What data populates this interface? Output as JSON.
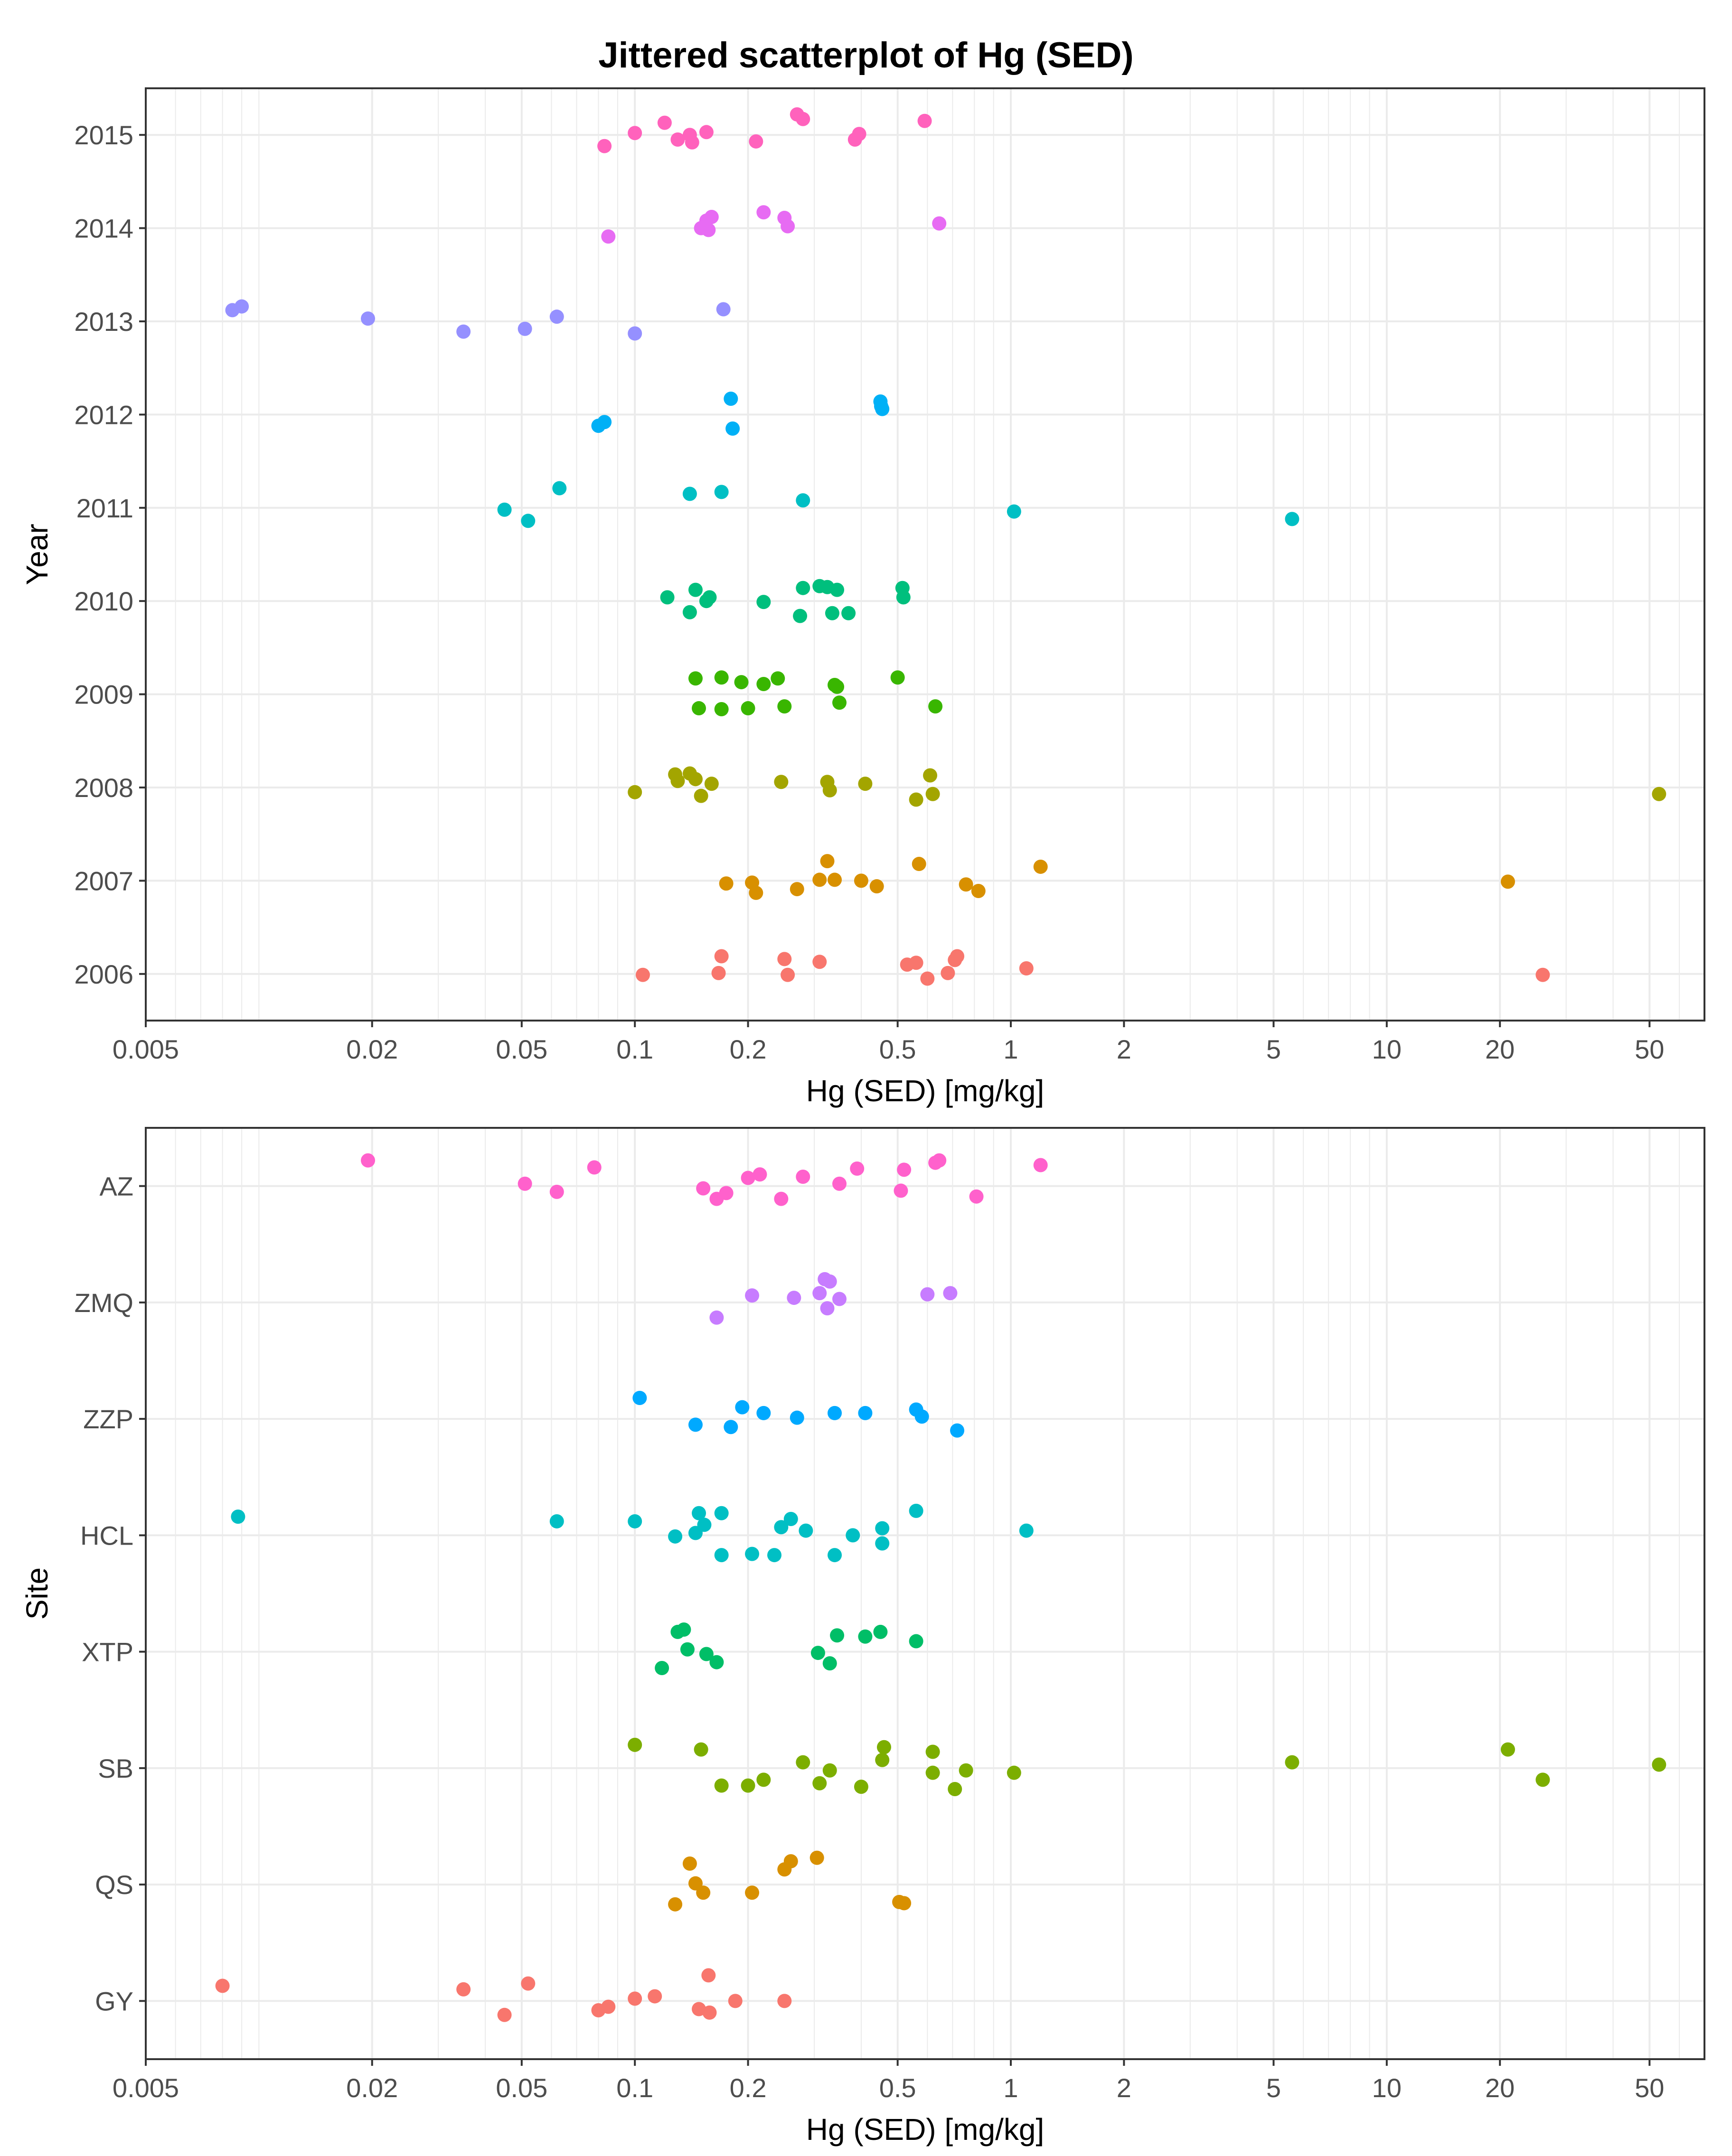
{
  "title": "Jittered scatterplot of Hg (SED)",
  "chart_data": [
    {
      "type": "scatter",
      "title": "Jittered scatterplot of Hg (SED)",
      "xlabel": "Hg (SED) [mg/kg]",
      "ylabel": "Year",
      "x_scale": "log10",
      "xlim": [
        0.005,
        70
      ],
      "x_ticks": [
        "0.005",
        "0.02",
        "0.05",
        "0.1",
        "0.2",
        "0.5",
        "1",
        "2",
        "5",
        "10",
        "20",
        "50"
      ],
      "x_tick_values": [
        0.005,
        0.02,
        0.05,
        0.1,
        0.2,
        0.5,
        1,
        2,
        5,
        10,
        20,
        50
      ],
      "categories": [
        "2006",
        "2007",
        "2008",
        "2009",
        "2010",
        "2011",
        "2012",
        "2013",
        "2014",
        "2015"
      ],
      "grid": true,
      "legend": "none",
      "series": [
        {
          "category": "2006",
          "color": "#F8766D",
          "points": [
            [
              0.105,
              -0.01
            ],
            [
              0.167,
              0.01
            ],
            [
              0.17,
              0.19
            ],
            [
              0.25,
              0.16
            ],
            [
              0.255,
              -0.01
            ],
            [
              0.31,
              0.13
            ],
            [
              0.53,
              0.1
            ],
            [
              0.56,
              0.12
            ],
            [
              0.6,
              -0.05
            ],
            [
              0.68,
              0.01
            ],
            [
              0.72,
              0.19
            ],
            [
              0.71,
              0.15
            ],
            [
              1.1,
              0.06
            ],
            [
              26.0,
              -0.01
            ]
          ]
        },
        {
          "category": "2007",
          "color": "#D89000",
          "points": [
            [
              0.175,
              -0.03
            ],
            [
              0.205,
              -0.02
            ],
            [
              0.21,
              -0.13
            ],
            [
              0.27,
              -0.09
            ],
            [
              0.31,
              0.01
            ],
            [
              0.325,
              0.21
            ],
            [
              0.34,
              0.01
            ],
            [
              0.4,
              0.0
            ],
            [
              0.44,
              -0.06
            ],
            [
              0.57,
              0.18
            ],
            [
              0.76,
              -0.04
            ],
            [
              0.82,
              -0.11
            ],
            [
              1.2,
              0.15
            ],
            [
              21.0,
              -0.01
            ]
          ]
        },
        {
          "category": "2008",
          "color": "#A3A500",
          "points": [
            [
              0.1,
              -0.05
            ],
            [
              0.128,
              0.14
            ],
            [
              0.13,
              0.07
            ],
            [
              0.14,
              0.15
            ],
            [
              0.145,
              0.09
            ],
            [
              0.15,
              -0.09
            ],
            [
              0.16,
              0.04
            ],
            [
              0.245,
              0.06
            ],
            [
              0.325,
              0.06
            ],
            [
              0.33,
              -0.03
            ],
            [
              0.41,
              0.04
            ],
            [
              0.56,
              -0.13
            ],
            [
              0.61,
              0.13
            ],
            [
              0.62,
              -0.07
            ],
            [
              53.0,
              -0.07
            ]
          ]
        },
        {
          "category": "2009",
          "color": "#39B600",
          "points": [
            [
              0.145,
              0.17
            ],
            [
              0.148,
              -0.15
            ],
            [
              0.17,
              0.18
            ],
            [
              0.17,
              -0.16
            ],
            [
              0.192,
              0.13
            ],
            [
              0.2,
              -0.15
            ],
            [
              0.22,
              0.11
            ],
            [
              0.24,
              0.17
            ],
            [
              0.25,
              -0.13
            ],
            [
              0.34,
              0.1
            ],
            [
              0.345,
              0.08
            ],
            [
              0.35,
              -0.09
            ],
            [
              0.5,
              0.18
            ],
            [
              0.63,
              -0.13
            ]
          ]
        },
        {
          "category": "2010",
          "color": "#00BF7D",
          "points": [
            [
              0.122,
              0.04
            ],
            [
              0.14,
              -0.12
            ],
            [
              0.145,
              0.12
            ],
            [
              0.155,
              0.0
            ],
            [
              0.158,
              0.04
            ],
            [
              0.22,
              -0.01
            ],
            [
              0.275,
              -0.16
            ],
            [
              0.28,
              0.14
            ],
            [
              0.31,
              0.16
            ],
            [
              0.325,
              0.15
            ],
            [
              0.335,
              -0.13
            ],
            [
              0.345,
              0.12
            ],
            [
              0.37,
              -0.13
            ],
            [
              0.515,
              0.14
            ],
            [
              0.518,
              0.04
            ]
          ]
        },
        {
          "category": "2011",
          "color": "#00BFC4",
          "points": [
            [
              0.045,
              -0.02
            ],
            [
              0.052,
              -0.14
            ],
            [
              0.063,
              0.21
            ],
            [
              0.14,
              0.15
            ],
            [
              0.17,
              0.17
            ],
            [
              0.28,
              0.08
            ],
            [
              1.02,
              -0.04
            ],
            [
              5.6,
              -0.12
            ]
          ]
        },
        {
          "category": "2012",
          "color": "#00B0F6",
          "points": [
            [
              0.08,
              -0.12
            ],
            [
              0.083,
              -0.08
            ],
            [
              0.18,
              0.17
            ],
            [
              0.182,
              -0.15
            ],
            [
              0.45,
              0.14
            ],
            [
              0.452,
              0.09
            ],
            [
              0.455,
              0.06
            ]
          ]
        },
        {
          "category": "2013",
          "color": "#9590FF",
          "points": [
            [
              0.0085,
              0.12
            ],
            [
              0.009,
              0.16
            ],
            [
              0.0195,
              0.03
            ],
            [
              0.035,
              -0.11
            ],
            [
              0.051,
              -0.08
            ],
            [
              0.062,
              0.05
            ],
            [
              0.1,
              -0.13
            ],
            [
              0.172,
              0.13
            ]
          ]
        },
        {
          "category": "2014",
          "color": "#E76BF3",
          "points": [
            [
              0.085,
              -0.09
            ],
            [
              0.15,
              0.0
            ],
            [
              0.155,
              0.08
            ],
            [
              0.157,
              -0.02
            ],
            [
              0.16,
              0.12
            ],
            [
              0.22,
              0.17
            ],
            [
              0.25,
              0.11
            ],
            [
              0.255,
              0.02
            ],
            [
              0.645,
              0.05
            ]
          ]
        },
        {
          "category": "2015",
          "color": "#FF62BC",
          "points": [
            [
              0.083,
              -0.12
            ],
            [
              0.1,
              0.02
            ],
            [
              0.12,
              0.13
            ],
            [
              0.13,
              -0.05
            ],
            [
              0.14,
              0.0
            ],
            [
              0.142,
              -0.08
            ],
            [
              0.155,
              0.03
            ],
            [
              0.21,
              -0.07
            ],
            [
              0.27,
              0.22
            ],
            [
              0.28,
              0.17
            ],
            [
              0.385,
              -0.05
            ],
            [
              0.395,
              0.01
            ],
            [
              0.59,
              0.15
            ]
          ]
        }
      ]
    },
    {
      "type": "scatter",
      "xlabel": "Hg (SED) [mg/kg]",
      "ylabel": "Site",
      "x_scale": "log10",
      "xlim": [
        0.005,
        70
      ],
      "x_ticks": [
        "0.005",
        "0.02",
        "0.05",
        "0.1",
        "0.2",
        "0.5",
        "1",
        "2",
        "5",
        "10",
        "20",
        "50"
      ],
      "x_tick_values": [
        0.005,
        0.02,
        0.05,
        0.1,
        0.2,
        0.5,
        1,
        2,
        5,
        10,
        20,
        50
      ],
      "categories": [
        "GY",
        "QS",
        "SB",
        "XTP",
        "HCL",
        "ZZP",
        "ZMQ",
        "AZ"
      ],
      "grid": true,
      "legend": "none",
      "series": [
        {
          "category": "GY",
          "color": "#F8766D",
          "points": [
            [
              0.008,
              0.13
            ],
            [
              0.035,
              0.1
            ],
            [
              0.045,
              -0.12
            ],
            [
              0.052,
              0.15
            ],
            [
              0.08,
              -0.08
            ],
            [
              0.085,
              -0.05
            ],
            [
              0.1,
              0.02
            ],
            [
              0.113,
              0.04
            ],
            [
              0.148,
              -0.07
            ],
            [
              0.158,
              -0.1
            ],
            [
              0.157,
              0.22
            ],
            [
              0.185,
              0.0
            ],
            [
              0.25,
              0.0
            ]
          ]
        },
        {
          "category": "QS",
          "color": "#D89000",
          "points": [
            [
              0.128,
              -0.17
            ],
            [
              0.14,
              0.18
            ],
            [
              0.145,
              0.01
            ],
            [
              0.152,
              -0.07
            ],
            [
              0.205,
              -0.07
            ],
            [
              0.25,
              0.13
            ],
            [
              0.26,
              0.2
            ],
            [
              0.305,
              0.23
            ],
            [
              0.505,
              -0.15
            ],
            [
              0.52,
              -0.16
            ]
          ]
        },
        {
          "category": "SB",
          "color": "#7CAE00",
          "points": [
            [
              0.1,
              0.2
            ],
            [
              0.15,
              0.16
            ],
            [
              0.17,
              -0.15
            ],
            [
              0.2,
              -0.15
            ],
            [
              0.22,
              -0.1
            ],
            [
              0.28,
              0.05
            ],
            [
              0.31,
              -0.13
            ],
            [
              0.33,
              -0.02
            ],
            [
              0.4,
              -0.16
            ],
            [
              0.46,
              0.18
            ],
            [
              0.455,
              0.07
            ],
            [
              0.62,
              0.14
            ],
            [
              0.62,
              -0.04
            ],
            [
              0.71,
              -0.18
            ],
            [
              0.76,
              -0.02
            ],
            [
              1.02,
              -0.04
            ],
            [
              5.6,
              0.05
            ],
            [
              21.0,
              0.16
            ],
            [
              26.0,
              -0.1
            ],
            [
              53.0,
              0.03
            ]
          ]
        },
        {
          "category": "XTP",
          "color": "#00BE67",
          "points": [
            [
              0.118,
              -0.14
            ],
            [
              0.13,
              0.17
            ],
            [
              0.135,
              0.19
            ],
            [
              0.138,
              0.02
            ],
            [
              0.155,
              -0.02
            ],
            [
              0.165,
              -0.09
            ],
            [
              0.307,
              -0.01
            ],
            [
              0.33,
              -0.1
            ],
            [
              0.345,
              0.14
            ],
            [
              0.41,
              0.13
            ],
            [
              0.45,
              0.17
            ],
            [
              0.56,
              0.09
            ]
          ]
        },
        {
          "category": "HCL",
          "color": "#00BFC4",
          "points": [
            [
              0.0088,
              0.16
            ],
            [
              0.062,
              0.12
            ],
            [
              0.1,
              0.12
            ],
            [
              0.128,
              -0.01
            ],
            [
              0.145,
              0.02
            ],
            [
              0.148,
              0.19
            ],
            [
              0.153,
              0.09
            ],
            [
              0.17,
              0.19
            ],
            [
              0.17,
              -0.17
            ],
            [
              0.205,
              -0.16
            ],
            [
              0.235,
              -0.17
            ],
            [
              0.245,
              0.07
            ],
            [
              0.26,
              0.14
            ],
            [
              0.285,
              0.04
            ],
            [
              0.34,
              -0.17
            ],
            [
              0.38,
              0.0
            ],
            [
              0.455,
              0.06
            ],
            [
              0.455,
              -0.07
            ],
            [
              0.56,
              0.21
            ],
            [
              1.1,
              0.04
            ]
          ]
        },
        {
          "category": "ZZP",
          "color": "#00A9FF",
          "points": [
            [
              0.103,
              0.18
            ],
            [
              0.145,
              -0.05
            ],
            [
              0.18,
              -0.07
            ],
            [
              0.193,
              0.1
            ],
            [
              0.22,
              0.05
            ],
            [
              0.27,
              0.01
            ],
            [
              0.34,
              0.05
            ],
            [
              0.41,
              0.05
            ],
            [
              0.56,
              0.08
            ],
            [
              0.58,
              0.02
            ],
            [
              0.72,
              -0.1
            ]
          ]
        },
        {
          "category": "ZMQ",
          "color": "#C77CFF",
          "points": [
            [
              0.165,
              -0.13
            ],
            [
              0.205,
              0.06
            ],
            [
              0.265,
              0.04
            ],
            [
              0.31,
              0.08
            ],
            [
              0.32,
              0.2
            ],
            [
              0.325,
              -0.05
            ],
            [
              0.33,
              0.18
            ],
            [
              0.35,
              0.03
            ],
            [
              0.6,
              0.07
            ],
            [
              0.69,
              0.08
            ]
          ]
        },
        {
          "category": "AZ",
          "color": "#FF61CC",
          "points": [
            [
              0.0195,
              0.22
            ],
            [
              0.051,
              0.02
            ],
            [
              0.062,
              -0.05
            ],
            [
              0.078,
              0.16
            ],
            [
              0.152,
              -0.02
            ],
            [
              0.165,
              -0.11
            ],
            [
              0.175,
              -0.06
            ],
            [
              0.2,
              0.07
            ],
            [
              0.215,
              0.1
            ],
            [
              0.245,
              -0.11
            ],
            [
              0.28,
              0.08
            ],
            [
              0.35,
              0.02
            ],
            [
              0.39,
              0.15
            ],
            [
              0.51,
              -0.04
            ],
            [
              0.52,
              0.14
            ],
            [
              0.63,
              0.2
            ],
            [
              0.645,
              0.22
            ],
            [
              0.81,
              -0.09
            ],
            [
              1.2,
              0.18
            ]
          ]
        }
      ]
    }
  ]
}
